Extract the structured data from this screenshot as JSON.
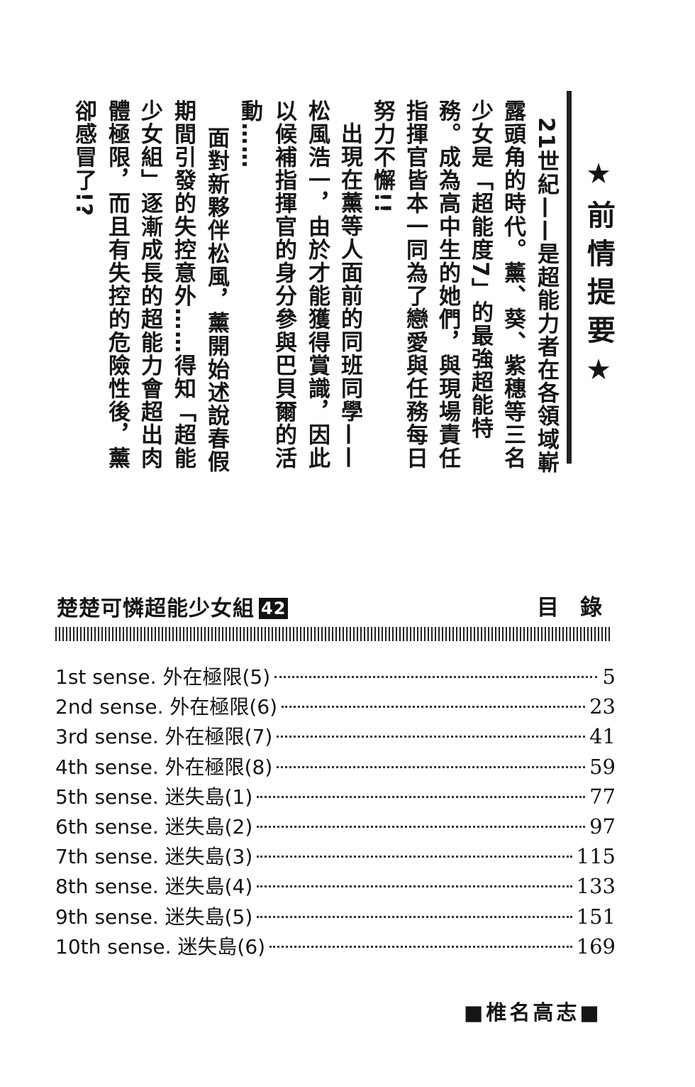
{
  "synopsis": {
    "title": "★前情提要★",
    "columns": [
      "21世紀——是超能力者在各領域嶄",
      "露頭角的時代。薰、葵、紫穗等三名",
      "少女是「超能度7」的最強超能特",
      "務。成為高中生的她們，與現場責任",
      "指揮官皆本一同為了戀愛與任務每日",
      "努力不懈!!",
      "出現在薰等人面前的同班同學——",
      "松風浩一，由於才能獲得賞識，因此",
      "以候補指揮官的身分參與巴貝爾的活",
      "動……",
      "面對新夥伴松風，薰開始述說春假",
      "期間引發的失控意外……得知「超能",
      "少女組」逐漸成長的超能力會超出肉",
      "體極限，而且有失控的危險性後，薰",
      "卻感冒了!?"
    ]
  },
  "toc": {
    "book_title": "楚楚可憐超能少女組",
    "volume": "42",
    "heading": "目錄",
    "entries": [
      {
        "label": "1st sense. 外在極限(5)",
        "page": "5"
      },
      {
        "label": "2nd sense. 外在極限(6)",
        "page": "23"
      },
      {
        "label": "3rd sense. 外在極限(7)",
        "page": "41"
      },
      {
        "label": "4th sense. 外在極限(8)",
        "page": "59"
      },
      {
        "label": "5th sense. 迷失島(1)",
        "page": "77"
      },
      {
        "label": "6th sense. 迷失島(2)",
        "page": "97"
      },
      {
        "label": "7th sense. 迷失島(3)",
        "page": "115"
      },
      {
        "label": "8th sense. 迷失島(4)",
        "page": "133"
      },
      {
        "label": "9th sense. 迷失島(5)",
        "page": "151"
      },
      {
        "label": "10th sense. 迷失島(6)",
        "page": "169"
      }
    ]
  },
  "author": "■椎名高志■"
}
